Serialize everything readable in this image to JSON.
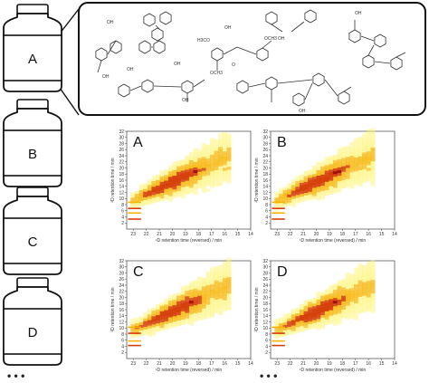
{
  "bottles": [
    {
      "label": "A"
    },
    {
      "label": "B"
    },
    {
      "label": "C"
    },
    {
      "label": "D"
    }
  ],
  "ellipsis_left": "• • •",
  "ellipsis_right": "• • •",
  "molecule_labels": [
    "OH",
    "OH",
    "OH",
    "OH",
    "H3CO",
    "OCH3",
    "OH",
    "OH",
    "O",
    "OH",
    "OCH3",
    "OH",
    "OH"
  ],
  "colors": {
    "heat_low": "#fff36a",
    "heat_mid": "#f6b300",
    "heat_high": "#d6400a",
    "heat_peak": "#a10f0f"
  },
  "chart_data": [
    {
      "type": "heatmap",
      "title": "A",
      "xlabel": "¹D retention time (reversed) / min",
      "ylabel": "²D retention time / min",
      "xticks": [
        "23",
        "22",
        "21",
        "20",
        "19",
        "18",
        "17",
        "16",
        "15",
        "14"
      ],
      "yticks": [
        "2",
        "4",
        "6",
        "8",
        "10",
        "12",
        "14",
        "16",
        "18",
        "20",
        "22",
        "24",
        "26",
        "28",
        "30",
        "32"
      ],
      "xlim": [
        23.5,
        14
      ],
      "ylim": [
        0,
        32
      ]
    },
    {
      "type": "heatmap",
      "title": "B",
      "xlabel": "¹D retention time (reversed) / min",
      "ylabel": "²D retention time / min",
      "xticks": [
        "23",
        "22",
        "21",
        "20",
        "19",
        "18",
        "17",
        "16",
        "15",
        "14"
      ],
      "yticks": [
        "2",
        "4",
        "6",
        "8",
        "10",
        "12",
        "14",
        "16",
        "18",
        "20",
        "22",
        "24",
        "26",
        "28",
        "30",
        "32"
      ],
      "xlim": [
        23.5,
        14
      ],
      "ylim": [
        0,
        32
      ]
    },
    {
      "type": "heatmap",
      "title": "C",
      "xlabel": "¹D retention time (reversed) / min",
      "ylabel": "²D retention time / min",
      "xticks": [
        "23",
        "22",
        "21",
        "20",
        "19",
        "18",
        "17",
        "16",
        "15",
        "14"
      ],
      "yticks": [
        "2",
        "4",
        "6",
        "8",
        "10",
        "12",
        "14",
        "16",
        "18",
        "20",
        "22",
        "24",
        "26",
        "28",
        "30",
        "32"
      ],
      "xlim": [
        23.5,
        14
      ],
      "ylim": [
        0,
        32
      ]
    },
    {
      "type": "heatmap",
      "title": "D",
      "xlabel": "¹D retention time (reversed) / min",
      "ylabel": "²D retention time / min",
      "xticks": [
        "23",
        "22",
        "21",
        "20",
        "19",
        "18",
        "17",
        "16",
        "15",
        "14"
      ],
      "yticks": [
        "2",
        "4",
        "6",
        "8",
        "10",
        "12",
        "14",
        "16",
        "18",
        "20",
        "22",
        "24",
        "26",
        "28",
        "30",
        "32"
      ],
      "xlim": [
        23.5,
        14
      ],
      "ylim": [
        0,
        32
      ]
    }
  ]
}
